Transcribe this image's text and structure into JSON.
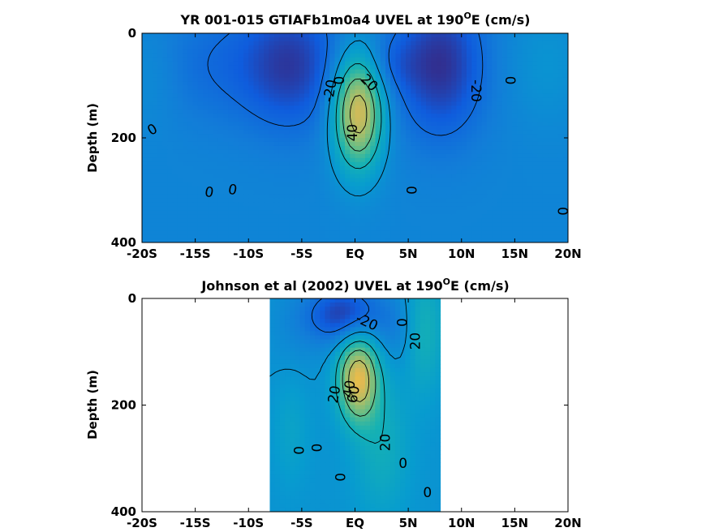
{
  "chart_data": [
    {
      "type": "heatmap",
      "title_main": "YR 001-015 GTIAFb1m0a4 UVEL at 190",
      "title_sup": "O",
      "title_end": "E (cm/s)",
      "xlabel": "",
      "ylabel": "Depth (m)",
      "xlim": [
        -20,
        20
      ],
      "ylim": [
        0,
        400
      ],
      "y_reversed": true,
      "grid": false,
      "x_ticks": [
        -20,
        -15,
        -10,
        -5,
        0,
        5,
        10,
        15,
        20
      ],
      "x_tick_labels": [
        "-20S",
        "-15S",
        "-10S",
        "-5S",
        "EQ",
        "5N",
        "10N",
        "15N",
        "20N"
      ],
      "y_ticks": [
        0,
        200,
        400
      ],
      "y_tick_labels": [
        "0",
        "200",
        "400"
      ],
      "data_extent": [
        -20,
        20
      ],
      "background": -8,
      "features": [
        {
          "x": 0.3,
          "y": 150,
          "sx": 1.6,
          "sy": 75,
          "value": 82
        },
        {
          "x": -6,
          "y": 60,
          "sx": 3.5,
          "sy": 90,
          "value": -27
        },
        {
          "x": 8,
          "y": 60,
          "sx": 3.0,
          "sy": 100,
          "value": -30
        },
        {
          "x": -14,
          "y": 60,
          "sx": 4,
          "sy": 80,
          "value": -10
        },
        {
          "x": 3,
          "y": 60,
          "sx": 2,
          "sy": 40,
          "value": -10
        },
        {
          "x": 18,
          "y": 60,
          "sx": 2.5,
          "sy": 80,
          "value": 8
        },
        {
          "x": -19,
          "y": 80,
          "sx": 2,
          "sy": 70,
          "value": 6
        }
      ],
      "contour_levels": [
        -20,
        0,
        20,
        40,
        60
      ],
      "contour_labels": [
        {
          "x": -1.4,
          "y": 90,
          "text": "0",
          "angle": -90
        },
        {
          "x": -2.3,
          "y": 110,
          "text": "-20",
          "angle": -80
        },
        {
          "x": 1.3,
          "y": 95,
          "text": "20",
          "angle": 45
        },
        {
          "x": -0.2,
          "y": 190,
          "text": "40",
          "angle": -90
        },
        {
          "x": -19,
          "y": 185,
          "text": "0",
          "angle": -30
        },
        {
          "x": -13.7,
          "y": 305,
          "text": "0",
          "angle": 10
        },
        {
          "x": -11.5,
          "y": 300,
          "text": "0",
          "angle": 10
        },
        {
          "x": 5.4,
          "y": 300,
          "text": "0",
          "angle": -90
        },
        {
          "x": 11.3,
          "y": 110,
          "text": "-20",
          "angle": 90
        },
        {
          "x": 14.7,
          "y": 90,
          "text": "0",
          "angle": -90
        },
        {
          "x": 19.6,
          "y": 340,
          "text": "0",
          "angle": -90
        }
      ]
    },
    {
      "type": "heatmap",
      "title_main": "Johnson et al (2002) UVEL at 190",
      "title_sup": "O",
      "title_end": "E (cm/s)",
      "xlabel": "",
      "ylabel": "Depth (m)",
      "xlim": [
        -20,
        20
      ],
      "ylim": [
        0,
        400
      ],
      "y_reversed": true,
      "grid": false,
      "x_ticks": [
        -20,
        -15,
        -10,
        -5,
        0,
        5,
        10,
        15,
        20
      ],
      "x_tick_labels": [
        "-20S",
        "-15S",
        "-10S",
        "-5S",
        "EQ",
        "5N",
        "10N",
        "15N",
        "20N"
      ],
      "y_ticks": [
        0,
        200,
        400
      ],
      "y_tick_labels": [
        "0",
        "200",
        "400"
      ],
      "data_extent": [
        -8,
        8
      ],
      "background": 0,
      "features": [
        {
          "x": 0.3,
          "y": 150,
          "sx": 1.3,
          "sy": 55,
          "value": 75
        },
        {
          "x": -1,
          "y": 30,
          "sx": 2.5,
          "sy": 40,
          "value": -35
        },
        {
          "x": 6.5,
          "y": 60,
          "sx": 1.3,
          "sy": 80,
          "value": 22
        },
        {
          "x": 2.5,
          "y": 280,
          "sx": 1.8,
          "sy": 90,
          "value": 18
        },
        {
          "x": -6,
          "y": 250,
          "sx": 1.2,
          "sy": 70,
          "value": 10
        },
        {
          "x": 4,
          "y": 60,
          "sx": 1.5,
          "sy": 50,
          "value": -10
        },
        {
          "x": -5.5,
          "y": 60,
          "sx": 2,
          "sy": 60,
          "value": -5
        }
      ],
      "contour_levels": [
        -20,
        0,
        20,
        40,
        60
      ],
      "contour_labels": [
        {
          "x": 1.1,
          "y": 45,
          "text": "-20",
          "angle": 25
        },
        {
          "x": 4.5,
          "y": 45,
          "text": "0",
          "angle": -90
        },
        {
          "x": 5.7,
          "y": 80,
          "text": "20",
          "angle": -90
        },
        {
          "x": -1.9,
          "y": 180,
          "text": "20",
          "angle": -80
        },
        {
          "x": -0.5,
          "y": 170,
          "text": "40",
          "angle": -80
        },
        {
          "x": -0.1,
          "y": 180,
          "text": "60",
          "angle": -80
        },
        {
          "x": -5.2,
          "y": 285,
          "text": "0",
          "angle": -90
        },
        {
          "x": -3.5,
          "y": 280,
          "text": "0",
          "angle": -90
        },
        {
          "x": 2.9,
          "y": 270,
          "text": "20",
          "angle": -90
        },
        {
          "x": 4.5,
          "y": 310,
          "text": "0",
          "angle": 0
        },
        {
          "x": -1.3,
          "y": 335,
          "text": "0",
          "angle": -90
        },
        {
          "x": 6.8,
          "y": 365,
          "text": "0",
          "angle": 0
        }
      ]
    }
  ]
}
